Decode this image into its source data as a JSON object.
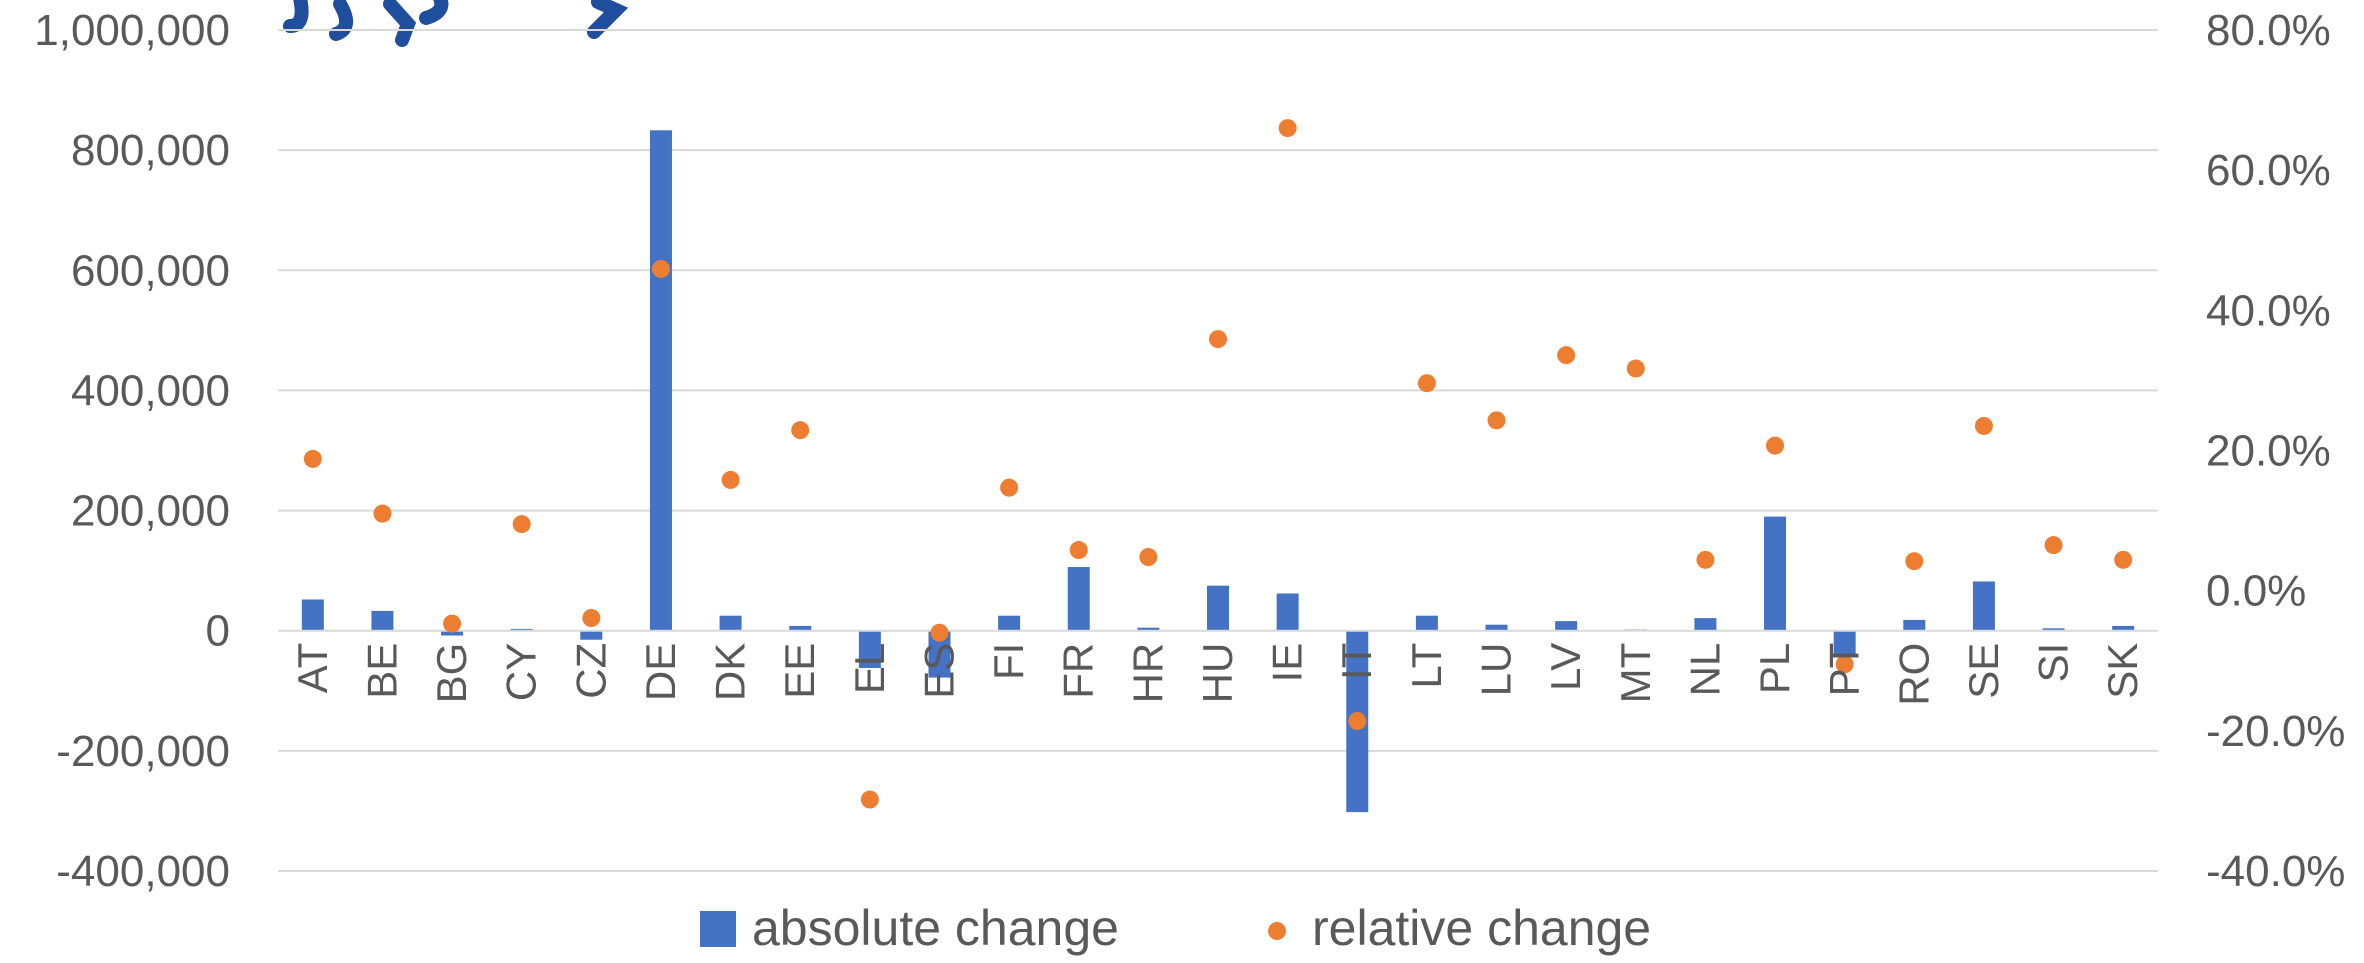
{
  "chart_data": {
    "type": "bar",
    "categories": [
      "AT",
      "BE",
      "BG",
      "CY",
      "CZ",
      "DE",
      "DK",
      "EE",
      "EL",
      "ES",
      "FI",
      "FR",
      "HR",
      "HU",
      "IE",
      "IT",
      "LT",
      "LU",
      "LV",
      "MT",
      "NL",
      "PL",
      "PT",
      "RO",
      "SE",
      "SI",
      "SK"
    ],
    "series": [
      {
        "name": "absolute change",
        "type": "bar",
        "axis": "left",
        "color": "#4472C4",
        "values": [
          52000,
          33000,
          -8000,
          3000,
          -15000,
          833000,
          25000,
          8000,
          -62000,
          -78000,
          25000,
          106000,
          5000,
          75000,
          62000,
          -302000,
          25000,
          10000,
          16000,
          2000,
          21000,
          190000,
          -42000,
          18000,
          82000,
          4000,
          8000
        ]
      },
      {
        "name": "relative change",
        "type": "scatter",
        "axis": "right",
        "color": "#ED7D31",
        "values": [
          18.8,
          11.0,
          -4.7,
          9.5,
          -3.9,
          45.9,
          15.8,
          22.9,
          -29.8,
          -6.0,
          14.7,
          5.8,
          4.8,
          35.9,
          66.0,
          -18.6,
          29.6,
          24.3,
          33.6,
          31.7,
          4.4,
          20.7,
          -10.5,
          4.2,
          23.5,
          6.5,
          4.4
        ]
      }
    ],
    "y_left": {
      "min": -400000,
      "max": 1000000,
      "step": 200000,
      "tick_labels": [
        "-400,000",
        "-200,000",
        "0",
        "200,000",
        "400,000",
        "600,000",
        "800,000",
        "1,000,000"
      ]
    },
    "y_right": {
      "min": -40,
      "max": 80,
      "step": 20,
      "tick_labels": [
        "-40.0%",
        "-20.0%",
        "0.0%",
        "20.0%",
        "40.0%",
        "60.0%",
        "80.0%"
      ]
    },
    "grid": true,
    "legend_position": "bottom"
  }
}
